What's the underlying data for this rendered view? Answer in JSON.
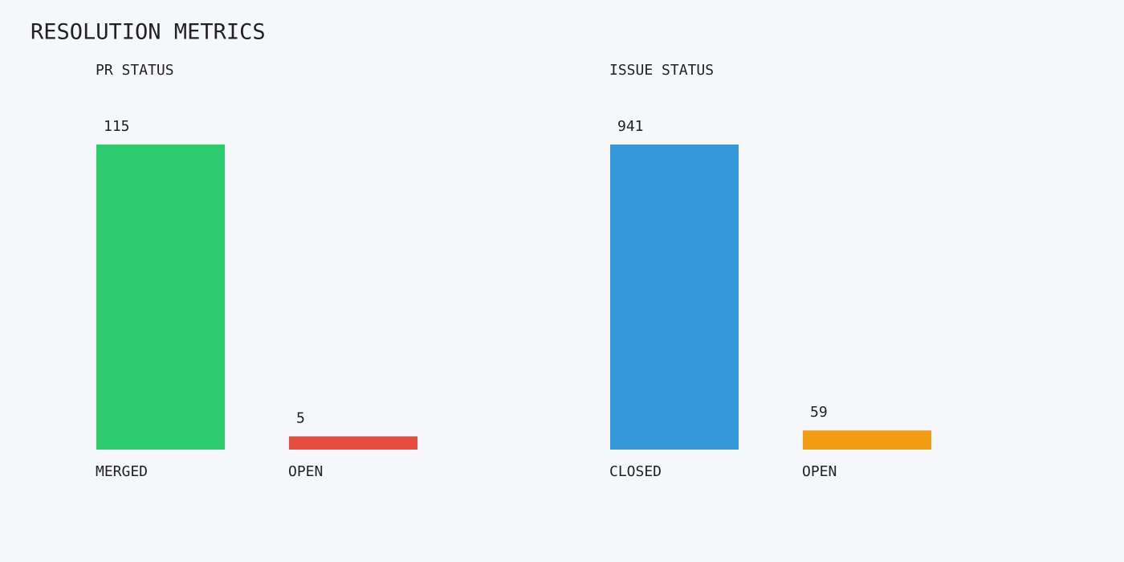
{
  "title": "RESOLUTION METRICS",
  "chart_data": [
    {
      "type": "bar",
      "title": "PR STATUS",
      "categories": [
        "MERGED",
        "OPEN"
      ],
      "values": [
        115,
        5
      ],
      "colors": [
        "#2ecc71",
        "#e74c3c"
      ]
    },
    {
      "type": "bar",
      "title": "ISSUE STATUS",
      "categories": [
        "CLOSED",
        "OPEN"
      ],
      "values": [
        941,
        59
      ],
      "colors": [
        "#3498db",
        "#f39c12"
      ]
    }
  ]
}
